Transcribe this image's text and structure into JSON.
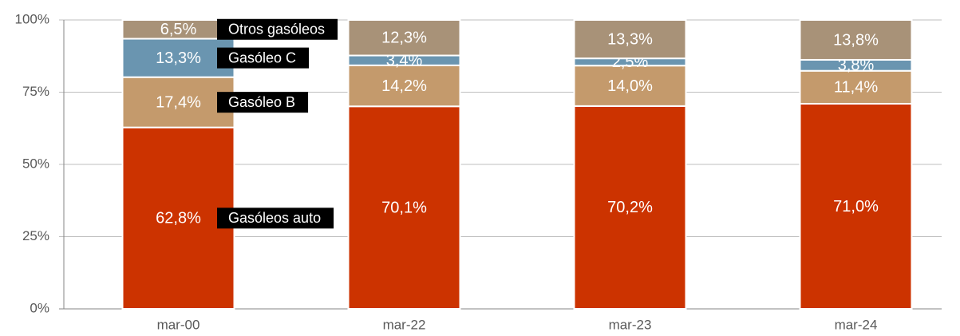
{
  "chart_data": {
    "type": "stacked_bar",
    "categories": [
      "mar-00",
      "mar-22",
      "mar-23",
      "mar-24"
    ],
    "series": [
      {
        "name": "Gasóleos auto",
        "color": "#cc3300",
        "values": [
          62.8,
          70.1,
          70.2,
          71.0
        ],
        "value_labels": [
          "62,8%",
          "70,1%",
          "70,2%",
          "71,0%"
        ]
      },
      {
        "name": "Gasóleo B",
        "color": "#c49a6c",
        "values": [
          17.4,
          14.2,
          14.0,
          11.4
        ],
        "value_labels": [
          "17,4%",
          "14,2%",
          "14,0%",
          "11,4%"
        ]
      },
      {
        "name": "Gasóleo C",
        "color": "#6a95b0",
        "values": [
          13.3,
          3.4,
          2.5,
          3.8
        ],
        "value_labels": [
          "13,3%",
          "3,4%",
          "2,5%",
          "3,8%"
        ]
      },
      {
        "name": "Otros gasóleos",
        "color": "#a89278",
        "values": [
          6.5,
          12.3,
          13.3,
          13.8
        ],
        "value_labels": [
          "6,5%",
          "12,3%",
          "13,3%",
          "13,8%"
        ]
      }
    ],
    "ylim": [
      0,
      100
    ],
    "yticks": [
      {
        "value": 0,
        "label": "0%"
      },
      {
        "value": 25,
        "label": "25%"
      },
      {
        "value": 50,
        "label": "50%"
      },
      {
        "value": 75,
        "label": "75%"
      },
      {
        "value": 100,
        "label": "100%"
      }
    ],
    "grid": true
  }
}
